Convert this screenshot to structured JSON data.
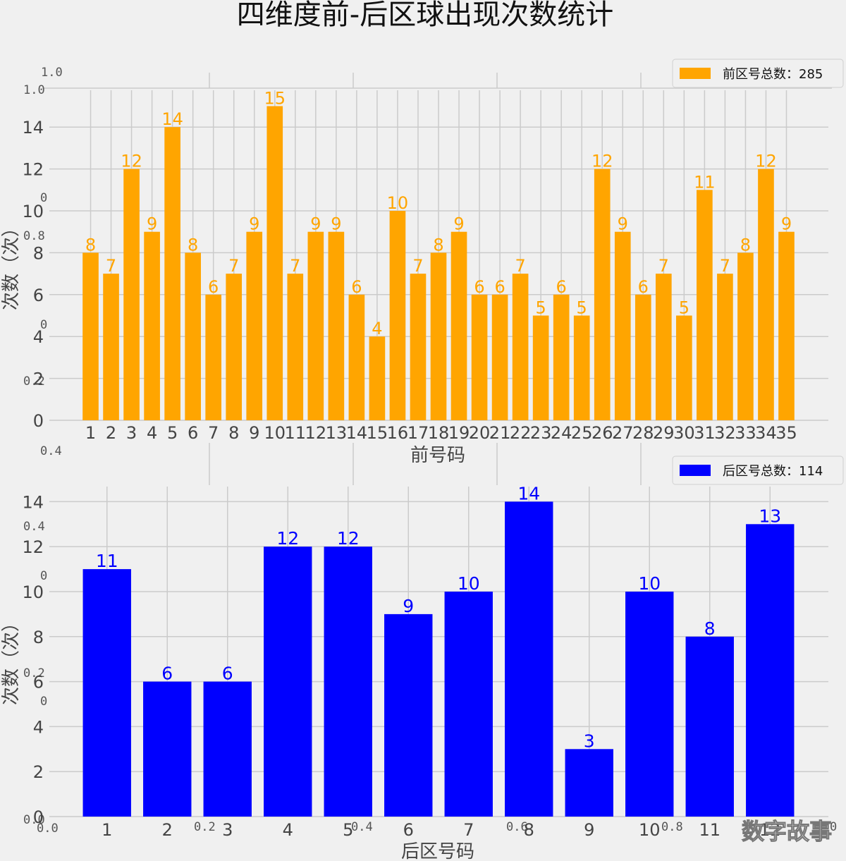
{
  "title": "四维度前-后区球出现次数统计",
  "watermark": "数字故事",
  "stray_ticks": {
    "top": [
      "1.0",
      "1.0",
      "0",
      "0.8",
      "0",
      "0.2",
      "0.4"
    ],
    "bottom": [
      "0.4",
      "0",
      "0.2",
      "0",
      "0.0",
      "0.0",
      "0.2",
      "0.4",
      "0.6",
      "0.8",
      "0"
    ]
  },
  "chart_data": [
    {
      "type": "bar",
      "color": "#FFA500",
      "xlabel": "前号码",
      "ylabel": "次数（次）",
      "legend": "前区号总数：285",
      "legend_position": "top-right",
      "ylim": [
        0,
        15.5
      ],
      "yticks": [
        "0",
        "2",
        "4",
        "6",
        "8",
        "10",
        "12",
        "14"
      ],
      "categories": [
        "1",
        "2",
        "3",
        "4",
        "5",
        "6",
        "7",
        "8",
        "9",
        "10",
        "11",
        "12",
        "13",
        "14",
        "15",
        "16",
        "17",
        "18",
        "19",
        "20",
        "21",
        "22",
        "23",
        "24",
        "25",
        "26",
        "27",
        "28",
        "29",
        "30",
        "31",
        "32",
        "33",
        "34",
        "35"
      ],
      "values": [
        8,
        7,
        12,
        9,
        14,
        8,
        6,
        7,
        9,
        15,
        7,
        9,
        9,
        6,
        4,
        10,
        7,
        8,
        9,
        6,
        6,
        7,
        5,
        6,
        5,
        12,
        9,
        6,
        7,
        5,
        11,
        7,
        8,
        12,
        9
      ],
      "grid": true
    },
    {
      "type": "bar",
      "color": "#0000FF",
      "xlabel": "后区号码",
      "ylabel": "次数（次）",
      "legend": "后区号总数：114",
      "legend_position": "top-right",
      "ylim": [
        0,
        14.5
      ],
      "yticks": [
        "0",
        "2",
        "4",
        "6",
        "8",
        "10",
        "12",
        "14"
      ],
      "categories": [
        "1",
        "2",
        "3",
        "4",
        "5",
        "6",
        "7",
        "8",
        "9",
        "10",
        "11",
        "12"
      ],
      "values": [
        11,
        6,
        6,
        12,
        12,
        9,
        10,
        14,
        3,
        10,
        8,
        13
      ],
      "grid": true
    }
  ]
}
